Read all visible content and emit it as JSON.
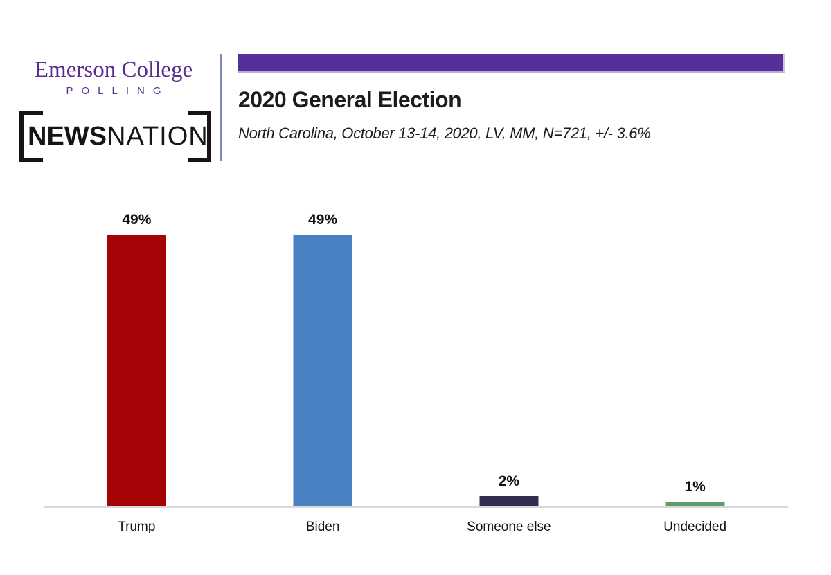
{
  "header": {
    "logo": {
      "org_name": "Emerson College",
      "org_sub": "POLLING",
      "partner_bold": "NEWS",
      "partner_regular": "NATION"
    },
    "title": "2020 General Election",
    "subtitle": "North Carolina, October 13-14, 2020, LV, MM, N=721, +/- 3.6%",
    "accent_bar_color": "#563099"
  },
  "colors": {
    "emerson_purple": "#5b2c90",
    "accent_purple": "#563099",
    "divider": "#8089ba",
    "baseline": "#d9d9d9"
  },
  "chart_data": {
    "type": "bar",
    "title": "2020 General Election",
    "subtitle": "North Carolina, October 13-14, 2020, LV, MM, N=721, +/- 3.6%",
    "categories": [
      "Trump",
      "Biden",
      "Someone else",
      "Undecided"
    ],
    "values": [
      49,
      49,
      2,
      1
    ],
    "value_labels": [
      "49%",
      "49%",
      "2%",
      "1%"
    ],
    "bar_colors": [
      "#a50305",
      "#4a81c3",
      "#332c50",
      "#5f9c6d"
    ],
    "xlabel": "",
    "ylabel": "",
    "ylim": [
      0,
      54
    ],
    "grid": false,
    "legend": false,
    "value_labels_position": "above-bars"
  }
}
